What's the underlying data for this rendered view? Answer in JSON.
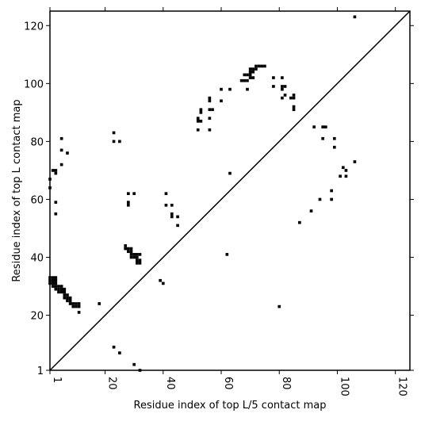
{
  "chart_data": {
    "type": "scatter",
    "title": "",
    "xlabel": "Residue index of top L/5 contact map",
    "ylabel": "Residue index of top L contact map",
    "xlim": [
      1,
      125
    ],
    "ylim": [
      1,
      125
    ],
    "xticks": [
      1,
      20,
      40,
      60,
      80,
      100,
      120
    ],
    "yticks": [
      1,
      20,
      40,
      60,
      80,
      100,
      120
    ],
    "tick_labels_x": [
      "1",
      "20",
      "40",
      "60",
      "80",
      "100",
      "120"
    ],
    "tick_labels_y": [
      "1",
      "20",
      "40",
      "60",
      "80",
      "100",
      "120"
    ],
    "marker": "square",
    "color": "#000000",
    "diagonal": true,
    "grid": false,
    "series": [
      {
        "name": "",
        "region": "upper-left",
        "points": [
          [
            1,
            31
          ],
          [
            1,
            32
          ],
          [
            1,
            33
          ],
          [
            2,
            30
          ],
          [
            2,
            31
          ],
          [
            2,
            32
          ],
          [
            2,
            33
          ],
          [
            3,
            30
          ],
          [
            3,
            31
          ],
          [
            3,
            32
          ],
          [
            3,
            33
          ],
          [
            3,
            29
          ],
          [
            4,
            28
          ],
          [
            4,
            29
          ],
          [
            4,
            30
          ],
          [
            5,
            28
          ],
          [
            5,
            29
          ],
          [
            5,
            30
          ],
          [
            6,
            27
          ],
          [
            6,
            28
          ],
          [
            6,
            29
          ],
          [
            6,
            26
          ],
          [
            7,
            25
          ],
          [
            7,
            26
          ],
          [
            7,
            27
          ],
          [
            8,
            24
          ],
          [
            8,
            25
          ],
          [
            8,
            26
          ],
          [
            9,
            23
          ],
          [
            9,
            24
          ],
          [
            10,
            23
          ],
          [
            10,
            24
          ],
          [
            11,
            23
          ],
          [
            11,
            24
          ],
          [
            11,
            21
          ],
          [
            18,
            24
          ],
          [
            1,
            64
          ],
          [
            1,
            67
          ],
          [
            2,
            70
          ],
          [
            3,
            70
          ],
          [
            3,
            69
          ],
          [
            3,
            59
          ],
          [
            3,
            55
          ],
          [
            5,
            81
          ],
          [
            5,
            77
          ],
          [
            5,
            72
          ],
          [
            7,
            76
          ],
          [
            23,
            83
          ],
          [
            23,
            80
          ],
          [
            25,
            80
          ],
          [
            28,
            62
          ],
          [
            28,
            59
          ],
          [
            28,
            58
          ],
          [
            30,
            62
          ],
          [
            27,
            44
          ],
          [
            27,
            43
          ],
          [
            28,
            43
          ],
          [
            28,
            42
          ],
          [
            29,
            43
          ],
          [
            29,
            42
          ],
          [
            29,
            41
          ],
          [
            29,
            40
          ],
          [
            30,
            41
          ],
          [
            30,
            40
          ],
          [
            31,
            40
          ],
          [
            31,
            41
          ],
          [
            31,
            39
          ],
          [
            31,
            38
          ],
          [
            32,
            39
          ],
          [
            32,
            38
          ],
          [
            32,
            41
          ],
          [
            39,
            32
          ],
          [
            40,
            31
          ],
          [
            41,
            62
          ],
          [
            41,
            58
          ],
          [
            43,
            58
          ],
          [
            43,
            55
          ],
          [
            43,
            54
          ],
          [
            45,
            54
          ],
          [
            45,
            51
          ],
          [
            52,
            88
          ],
          [
            52,
            87
          ],
          [
            53,
            87
          ],
          [
            53,
            91
          ],
          [
            53,
            90
          ],
          [
            52,
            84
          ],
          [
            56,
            95
          ],
          [
            56,
            94
          ],
          [
            56,
            91
          ],
          [
            57,
            91
          ],
          [
            56,
            88
          ],
          [
            56,
            84
          ],
          [
            60,
            98
          ],
          [
            63,
            98
          ],
          [
            60,
            94
          ],
          [
            63,
            69
          ],
          [
            62,
            41
          ],
          [
            67,
            101
          ],
          [
            68,
            101
          ],
          [
            69,
            101
          ],
          [
            68,
            103
          ],
          [
            69,
            103
          ],
          [
            70,
            103
          ],
          [
            70,
            102
          ],
          [
            70,
            104
          ],
          [
            71,
            104
          ],
          [
            71,
            105
          ],
          [
            72,
            105
          ],
          [
            72,
            106
          ],
          [
            73,
            106
          ],
          [
            74,
            106
          ],
          [
            75,
            106
          ],
          [
            69,
            98
          ],
          [
            70,
            105
          ],
          [
            71,
            102
          ],
          [
            78,
            102
          ],
          [
            78,
            99
          ],
          [
            81,
            102
          ],
          [
            81,
            99
          ],
          [
            81,
            98
          ],
          [
            82,
            99
          ],
          [
            81,
            95
          ],
          [
            82,
            96
          ],
          [
            84,
            95
          ],
          [
            85,
            95
          ],
          [
            85,
            96
          ],
          [
            85,
            92
          ],
          [
            85,
            91
          ],
          [
            80,
            23
          ]
        ]
      },
      {
        "name": "",
        "region": "lower-right",
        "points": [
          [
            23,
            9
          ],
          [
            25,
            7
          ],
          [
            30,
            3
          ],
          [
            32,
            1
          ],
          [
            87,
            52
          ],
          [
            91,
            56
          ],
          [
            92,
            85
          ],
          [
            94,
            60
          ],
          [
            95,
            85
          ],
          [
            96,
            85
          ],
          [
            95,
            81
          ],
          [
            98,
            63
          ],
          [
            98,
            60
          ],
          [
            99,
            81
          ],
          [
            99,
            78
          ],
          [
            101,
            68
          ],
          [
            102,
            71
          ],
          [
            103,
            70
          ],
          [
            103,
            68
          ],
          [
            106,
            73
          ],
          [
            106,
            123
          ]
        ]
      }
    ]
  }
}
